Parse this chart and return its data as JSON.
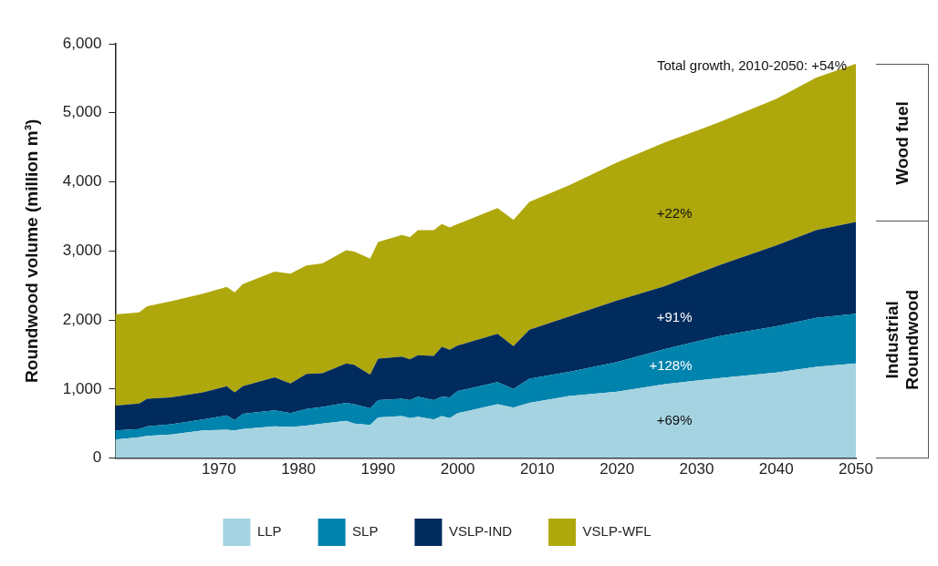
{
  "chart_data": {
    "type": "area",
    "stacked": true,
    "ylabel": "Roundwood volume (million m³)",
    "x": [
      1957,
      1960,
      1961,
      1964,
      1968,
      1971,
      1972,
      1973,
      1977,
      1979,
      1981,
      1983,
      1986,
      1987,
      1989,
      1990,
      1993,
      1994,
      1995,
      1997,
      1998,
      1999,
      2000,
      2005,
      2007,
      2009,
      2014,
      2020,
      2026,
      2033,
      2040,
      2045,
      2050
    ],
    "xlim": [
      1957,
      2050
    ],
    "xticks": [
      1970,
      1980,
      1990,
      2000,
      2010,
      2020,
      2030,
      2040,
      2050
    ],
    "ylim": [
      0,
      6000
    ],
    "yticks": [
      {
        "value": 0,
        "label": "0"
      },
      {
        "value": 1000,
        "label": "1,000"
      },
      {
        "value": 2000,
        "label": "2,000"
      },
      {
        "value": 3000,
        "label": "3,000"
      },
      {
        "value": 4000,
        "label": "4,000"
      },
      {
        "value": 5000,
        "label": "5,000"
      },
      {
        "value": 6000,
        "label": "6,000"
      }
    ],
    "grid": false,
    "legend": "bottom",
    "series": [
      {
        "name": "LLP",
        "color": "#a6d3e1",
        "values": [
          270,
          300,
          320,
          340,
          400,
          410,
          400,
          420,
          460,
          450,
          470,
          500,
          540,
          500,
          480,
          590,
          610,
          580,
          600,
          560,
          610,
          580,
          650,
          780,
          730,
          800,
          900,
          960,
          1070,
          1160,
          1240,
          1320,
          1370
        ]
      },
      {
        "name": "SLP",
        "color": "#0083ad",
        "values": [
          130,
          120,
          140,
          150,
          160,
          210,
          150,
          220,
          230,
          200,
          240,
          240,
          260,
          280,
          240,
          250,
          250,
          260,
          290,
          280,
          280,
          300,
          320,
          320,
          270,
          350,
          350,
          430,
          510,
          610,
          670,
          710,
          720
        ]
      },
      {
        "name": "VSLP-IND",
        "color": "#002b5c",
        "values": [
          360,
          370,
          400,
          390,
          390,
          420,
          400,
          400,
          480,
          430,
          510,
          490,
          570,
          570,
          490,
          600,
          610,
          590,
          600,
          640,
          720,
          690,
          660,
          700,
          620,
          710,
          800,
          890,
          910,
          1030,
          1170,
          1270,
          1330
        ]
      },
      {
        "name": "VSLP-WFL",
        "color": "#afa80c",
        "values": [
          1320,
          1320,
          1340,
          1390,
          1430,
          1440,
          1450,
          1480,
          1530,
          1590,
          1570,
          1590,
          1640,
          1640,
          1680,
          1690,
          1760,
          1770,
          1810,
          1820,
          1780,
          1770,
          1760,
          1820,
          1830,
          1850,
          1900,
          2000,
          2080,
          2070,
          2120,
          2210,
          2290
        ]
      }
    ],
    "annotations": [
      "Total growth, 2010-2050: +54%",
      "Wood fuel",
      "Industrial Roundwood",
      "+69%",
      "+128%",
      "+91%",
      "+22%"
    ]
  }
}
